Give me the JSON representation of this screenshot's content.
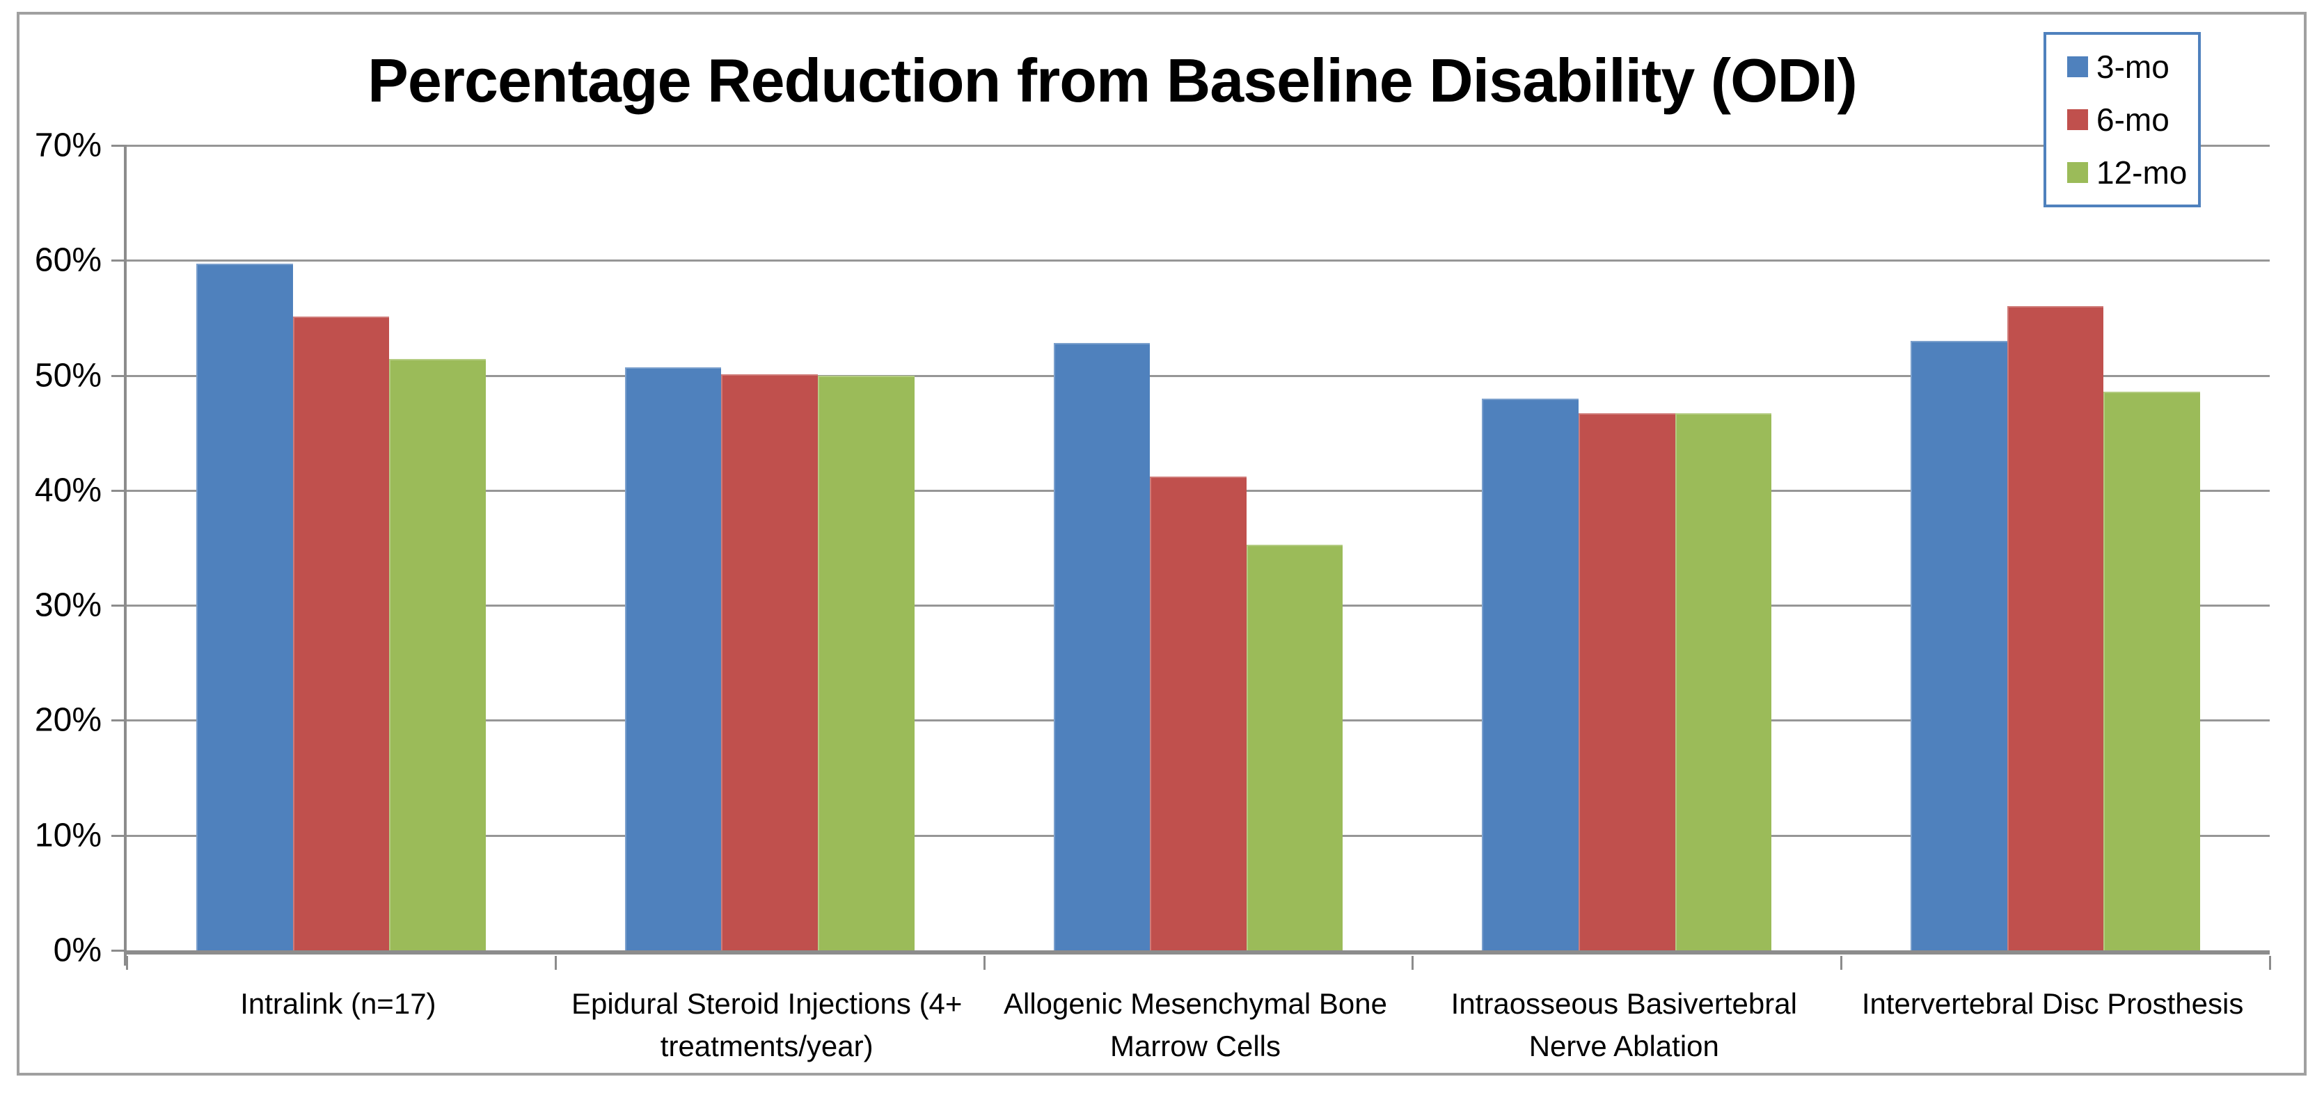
{
  "chart_data": {
    "type": "bar",
    "title": "Percentage Reduction from Baseline Disability (ODI)",
    "categories": [
      "Intralink (n=17)",
      "Epidural Steroid Injections (4+\ntreatments/year)",
      "Allogenic Mesenchymal Bone\nMarrow Cells",
      "Intraosseous Basivertebral\nNerve Ablation",
      "Intervertebral Disc Prosthesis"
    ],
    "series": [
      {
        "name": "3-mo",
        "color": "#4F81BD",
        "values": [
          59.7,
          50.7,
          52.8,
          48.0,
          53.0
        ]
      },
      {
        "name": "6-mo",
        "color": "#C0504D",
        "values": [
          55.1,
          50.1,
          41.2,
          46.7,
          56.0
        ]
      },
      {
        "name": "12-mo",
        "color": "#9BBB59",
        "values": [
          51.4,
          50.0,
          35.3,
          46.7,
          48.6
        ]
      }
    ],
    "xlabel": "",
    "ylabel": "",
    "ylim": [
      0,
      70
    ],
    "yticks": [
      "0%",
      "10%",
      "20%",
      "30%",
      "40%",
      "50%",
      "60%",
      "70%"
    ],
    "grid": true,
    "legend_position": "top-right"
  },
  "styles": {
    "gridline_color": "#969696",
    "axis_color": "#8C8C8C",
    "frame_border_color": "#A0A0A0",
    "legend_border_color": "#4F81BD",
    "text_color": "#000000"
  }
}
